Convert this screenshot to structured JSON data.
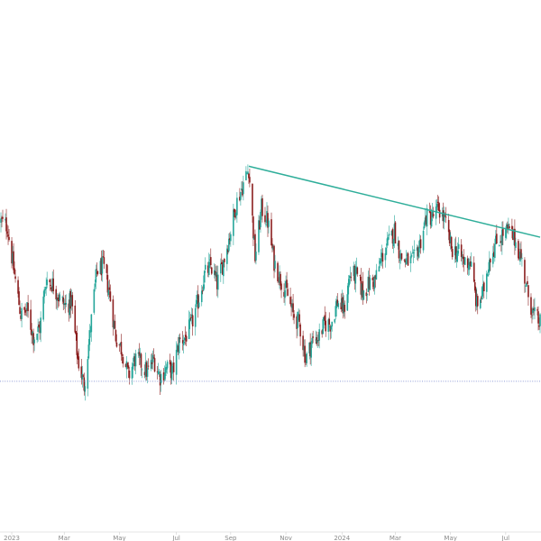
{
  "chart_data": {
    "type": "candlestick",
    "x_tick_labels": [
      "2023",
      "Mar",
      "May",
      "Jul",
      "Sep",
      "Nov",
      "2024",
      "Mar",
      "May",
      "Jul"
    ],
    "x_tick_dates": [
      "2023-01-02",
      "2023-03-01",
      "2023-05-01",
      "2023-07-03",
      "2023-09-01",
      "2023-11-01",
      "2024-01-02",
      "2024-03-01",
      "2024-05-01",
      "2024-07-01"
    ],
    "grid": false,
    "colors": {
      "up": "#26a69a",
      "down": "#8b1e1e",
      "trendline": "#2fae9a",
      "support": "#8f9bd6",
      "text": "#8a8a8a",
      "background": "#ffffff"
    },
    "price_path": [
      [
        "2022-12-21",
        100
      ],
      [
        "2022-12-28",
        99
      ],
      [
        "2023-01-05",
        88
      ],
      [
        "2023-01-12",
        79
      ],
      [
        "2023-01-19",
        80
      ],
      [
        "2023-01-26",
        74
      ],
      [
        "2023-02-02",
        76
      ],
      [
        "2023-02-09",
        87
      ],
      [
        "2023-02-16",
        86
      ],
      [
        "2023-02-23",
        83
      ],
      [
        "2023-03-02",
        81
      ],
      [
        "2023-03-09",
        82
      ],
      [
        "2023-03-16",
        69
      ],
      [
        "2023-03-23",
        63
      ],
      [
        "2023-03-30",
        76
      ],
      [
        "2023-04-06",
        89
      ],
      [
        "2023-04-13",
        90
      ],
      [
        "2023-04-20",
        84
      ],
      [
        "2023-04-27",
        74
      ],
      [
        "2023-05-04",
        71
      ],
      [
        "2023-05-11",
        65
      ],
      [
        "2023-05-18",
        69
      ],
      [
        "2023-05-25",
        68
      ],
      [
        "2023-06-01",
        66
      ],
      [
        "2023-06-08",
        69
      ],
      [
        "2023-06-15",
        65
      ],
      [
        "2023-06-22",
        67
      ],
      [
        "2023-06-29",
        66
      ],
      [
        "2023-07-06",
        73
      ],
      [
        "2023-07-13",
        74
      ],
      [
        "2023-07-20",
        77
      ],
      [
        "2023-07-27",
        82
      ],
      [
        "2023-08-03",
        88
      ],
      [
        "2023-08-10",
        90
      ],
      [
        "2023-08-17",
        86
      ],
      [
        "2023-08-24",
        91
      ],
      [
        "2023-08-31",
        97
      ],
      [
        "2023-09-07",
        104
      ],
      [
        "2023-09-14",
        108
      ],
      [
        "2023-09-21",
        112
      ],
      [
        "2023-09-28",
        92
      ],
      [
        "2023-10-05",
        103
      ],
      [
        "2023-10-12",
        100
      ],
      [
        "2023-10-19",
        91
      ],
      [
        "2023-10-26",
        87
      ],
      [
        "2023-11-02",
        84
      ],
      [
        "2023-11-09",
        79
      ],
      [
        "2023-11-16",
        77
      ],
      [
        "2023-11-23",
        69
      ],
      [
        "2023-11-30",
        73
      ],
      [
        "2023-12-07",
        74
      ],
      [
        "2023-12-14",
        77
      ],
      [
        "2023-12-21",
        77
      ],
      [
        "2023-12-28",
        82
      ],
      [
        "2024-01-04",
        80
      ],
      [
        "2024-01-11",
        88
      ],
      [
        "2024-01-18",
        88
      ],
      [
        "2024-01-25",
        84
      ],
      [
        "2024-02-01",
        86
      ],
      [
        "2024-02-08",
        87
      ],
      [
        "2024-02-15",
        92
      ],
      [
        "2024-02-22",
        95
      ],
      [
        "2024-02-29",
        98
      ],
      [
        "2024-03-07",
        92
      ],
      [
        "2024-03-14",
        91
      ],
      [
        "2024-03-21",
        91
      ],
      [
        "2024-03-28",
        95
      ],
      [
        "2024-04-04",
        101
      ],
      [
        "2024-04-11",
        101
      ],
      [
        "2024-04-18",
        103
      ],
      [
        "2024-04-25",
        100
      ],
      [
        "2024-05-02",
        94
      ],
      [
        "2024-05-09",
        93
      ],
      [
        "2024-05-16",
        91
      ],
      [
        "2024-05-23",
        91
      ],
      [
        "2024-05-30",
        81
      ],
      [
        "2024-06-06",
        84
      ],
      [
        "2024-06-13",
        92
      ],
      [
        "2024-06-20",
        95
      ],
      [
        "2024-06-27",
        97
      ],
      [
        "2024-07-04",
        98
      ],
      [
        "2024-07-11",
        96
      ],
      [
        "2024-07-18",
        92
      ],
      [
        "2024-07-25",
        84
      ],
      [
        "2024-08-01",
        79
      ],
      [
        "2024-08-08",
        77
      ]
    ],
    "trendline": {
      "start": [
        "2023-09-21",
        112.5
      ],
      "end": [
        "2024-08-08",
        96.5
      ]
    },
    "support_level": 64,
    "x_range": [
      "2022-12-20",
      "2024-08-09"
    ],
    "y_range": [
      30,
      150
    ]
  }
}
